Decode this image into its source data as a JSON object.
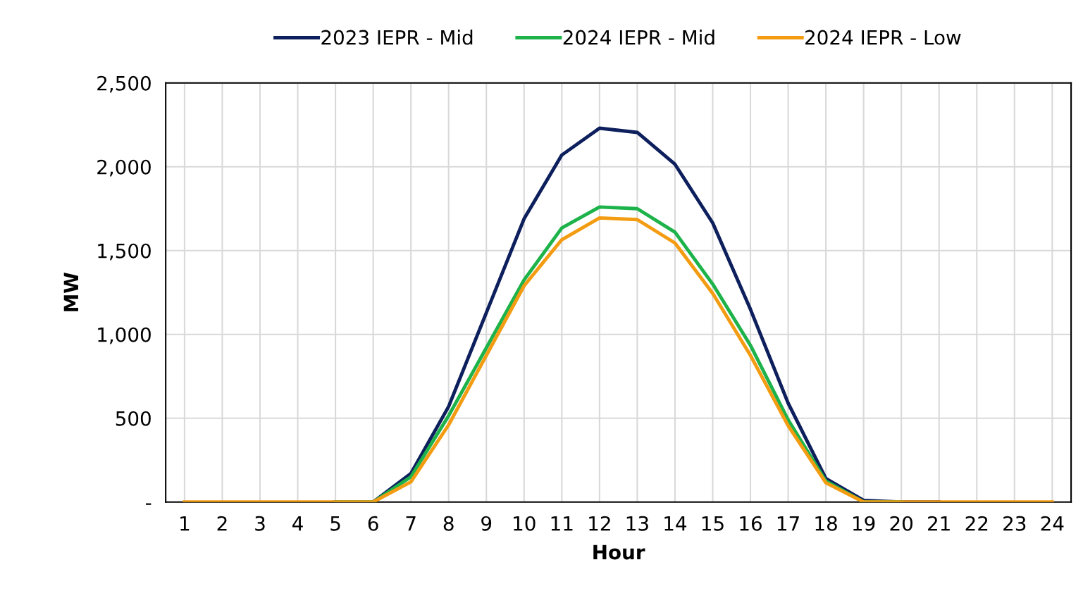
{
  "chart_data": {
    "type": "line",
    "xlabel": "Hour",
    "ylabel": "MW",
    "categories": [
      "1",
      "2",
      "3",
      "4",
      "5",
      "6",
      "7",
      "8",
      "9",
      "10",
      "11",
      "12",
      "13",
      "14",
      "15",
      "16",
      "17",
      "18",
      "19",
      "20",
      "21",
      "22",
      "23",
      "24"
    ],
    "series": [
      {
        "name": "2023 IEPR - Mid",
        "color": "#0d1f5c",
        "values": [
          null,
          null,
          null,
          null,
          0,
          0,
          170,
          570,
          1130,
          1690,
          2070,
          2230,
          2205,
          2015,
          1665,
          1150,
          590,
          140,
          10,
          0,
          0,
          null,
          null,
          null
        ]
      },
      {
        "name": "2024 IEPR - Mid",
        "color": "#1db34a",
        "values": [
          null,
          null,
          null,
          null,
          0,
          0,
          150,
          515,
          920,
          1325,
          1635,
          1760,
          1750,
          1610,
          1300,
          935,
          490,
          125,
          0,
          0,
          null,
          null,
          null,
          null
        ]
      },
      {
        "name": "2024 IEPR - Low",
        "color": "#f39c12",
        "values": [
          0,
          0,
          0,
          0,
          0,
          0,
          120,
          460,
          875,
          1290,
          1565,
          1695,
          1685,
          1545,
          1245,
          875,
          455,
          115,
          0,
          0,
          0,
          0,
          0,
          0
        ]
      }
    ],
    "ylim": [
      0,
      2500
    ],
    "yticks": [
      {
        "value": 0,
        "label": "-"
      },
      {
        "value": 500,
        "label": "500"
      },
      {
        "value": 1000,
        "label": "1,000"
      },
      {
        "value": 1500,
        "label": "1,500"
      },
      {
        "value": 2000,
        "label": "2,000"
      },
      {
        "value": 2500,
        "label": "2,500"
      }
    ],
    "grid": true,
    "legend": "top",
    "marker": "none",
    "line_style": "solid"
  }
}
